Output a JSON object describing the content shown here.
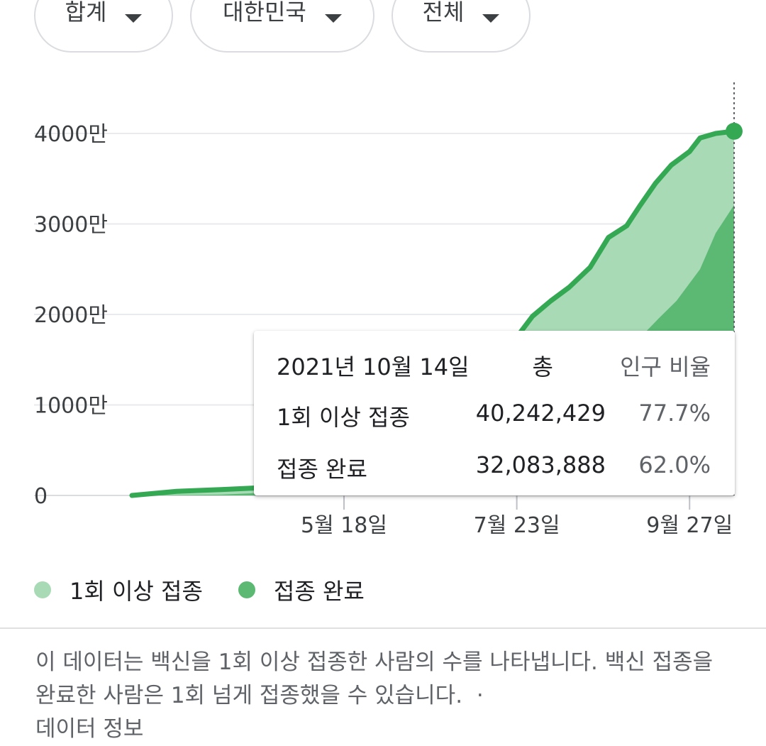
{
  "filters": [
    {
      "label": "합계"
    },
    {
      "label": "대한민국"
    },
    {
      "label": "전체"
    }
  ],
  "colors": {
    "first_dose": "#a8dab5",
    "fully_vaccinated": "#5bb974",
    "line": "#34a853",
    "grid": "#e8eaed"
  },
  "chart_data": {
    "type": "area",
    "y_ticks": [
      "0",
      "1000만",
      "2000만",
      "3000만",
      "4000만"
    ],
    "y_tick_values": [
      0,
      10000000,
      20000000,
      30000000,
      40000000
    ],
    "ylim": [
      0,
      40000000
    ],
    "x_ticks": [
      "5월 18일",
      "7월 23일",
      "9월 27일"
    ],
    "x_tick_dates": [
      "2021-05-18",
      "2021-07-23",
      "2021-09-27"
    ],
    "xlim": [
      "2021-02-26",
      "2021-10-14"
    ],
    "grid": true,
    "legend_position": "bottom-left",
    "series": [
      {
        "name": "1회 이상 접종",
        "dates": [
          "2021-02-26",
          "2021-03-15",
          "2021-04-01",
          "2021-04-20",
          "2021-05-05",
          "2021-05-18",
          "2021-06-01",
          "2021-06-10",
          "2021-06-30",
          "2021-07-10",
          "2021-07-23",
          "2021-07-29",
          "2021-08-05",
          "2021-08-12",
          "2021-08-20",
          "2021-08-27",
          "2021-09-03",
          "2021-09-08",
          "2021-09-14",
          "2021-09-20",
          "2021-09-27",
          "2021-10-01",
          "2021-10-07",
          "2021-10-14"
        ],
        "values": [
          0,
          450000,
          650000,
          900000,
          1500000,
          3700000,
          7500000,
          12000000,
          15000000,
          16500000,
          17500000,
          19800000,
          21500000,
          23000000,
          25200000,
          28500000,
          29800000,
          32000000,
          34500000,
          36500000,
          38000000,
          39500000,
          40000000,
          40242429
        ]
      },
      {
        "name": "접종 완료",
        "dates": [
          "2021-02-26",
          "2021-04-01",
          "2021-05-18",
          "2021-06-15",
          "2021-07-23",
          "2021-08-15",
          "2021-08-25",
          "2021-09-05",
          "2021-09-15",
          "2021-09-22",
          "2021-10-01",
          "2021-10-07",
          "2021-10-14"
        ],
        "values": [
          0,
          90000,
          700000,
          2000000,
          5000000,
          9000000,
          14000000,
          16500000,
          19500000,
          21500000,
          25000000,
          29000000,
          32083888
        ]
      }
    ],
    "tooltip": {
      "date": "2021년 10월 14일",
      "total_header": "총",
      "ratio_header": "인구 비율",
      "rows": [
        {
          "label": "1회 이상 접종",
          "total": "40,242,429",
          "ratio": "77.7%"
        },
        {
          "label": "접종 완료",
          "total": "32,083,888",
          "ratio": "62.0%"
        }
      ]
    }
  },
  "legend": [
    {
      "label": "1회 이상 접종"
    },
    {
      "label": "접종 완료"
    }
  ],
  "note": {
    "text": "이 데이터는 백신을 1회 이상 접종한 사람의 수를 나타냅니다. 백신 접종을 완료한 사람은 1회 넘게 접종했을 수 있습니다.",
    "separator": "·",
    "link": "데이터 정보"
  }
}
